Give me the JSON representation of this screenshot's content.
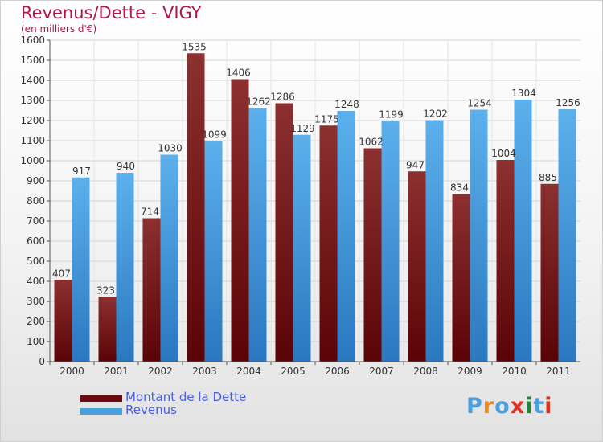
{
  "title": "Revenus/Dette - VIGY",
  "subtitle": "(en milliers d'€)",
  "legend": [
    {
      "label": "Montant de la Dette",
      "color": "#6b0a0e"
    },
    {
      "label": "Revenus",
      "color": "#4a9fe0"
    }
  ],
  "logo": {
    "text": "Proxiti",
    "colors": [
      "#4a9fe0",
      "#f08a1c",
      "#4a9fe0",
      "#e03020",
      "#1a8a3a",
      "#4a9fe0",
      "#e03020"
    ]
  },
  "colors": {
    "dette_light": "#8c3030",
    "dette_dark": "#5a0306",
    "revenus_light": "#5cb0ec",
    "revenus_dark": "#2a78c0",
    "title": "#b0164c",
    "legend_text": "#4a5fe0"
  },
  "chart_data": {
    "type": "bar",
    "title": "Revenus/Dette - VIGY",
    "subtitle": "(en milliers d'€)",
    "categories": [
      "2000",
      "2001",
      "2002",
      "2003",
      "2004",
      "2005",
      "2006",
      "2007",
      "2008",
      "2009",
      "2010",
      "2011"
    ],
    "series": [
      {
        "name": "Montant de la Dette",
        "values": [
          407,
          323,
          714,
          1535,
          1406,
          1286,
          1175,
          1062,
          947,
          834,
          1004,
          885
        ]
      },
      {
        "name": "Revenus",
        "values": [
          917,
          940,
          1030,
          1099,
          1262,
          1129,
          1248,
          1199,
          1202,
          1254,
          1304,
          1256
        ]
      }
    ],
    "data_labels": [
      [
        "407",
        "323",
        "714",
        "1535",
        "1406",
        "1286",
        "1175",
        "1062",
        "947",
        "834",
        "1004",
        "885"
      ],
      [
        "917",
        "940",
        "1030",
        "1099",
        "1262",
        "1129",
        "1248",
        "1199",
        "1202",
        "1254",
        "1304",
        "1256"
      ]
    ],
    "yticks": [
      0,
      100,
      200,
      300,
      400,
      500,
      600,
      700,
      800,
      900,
      1000,
      1100,
      1200,
      1300,
      1400,
      1500,
      1600
    ],
    "ylim": [
      0,
      1600
    ],
    "grid": true,
    "legend_position": "bottom-left"
  }
}
